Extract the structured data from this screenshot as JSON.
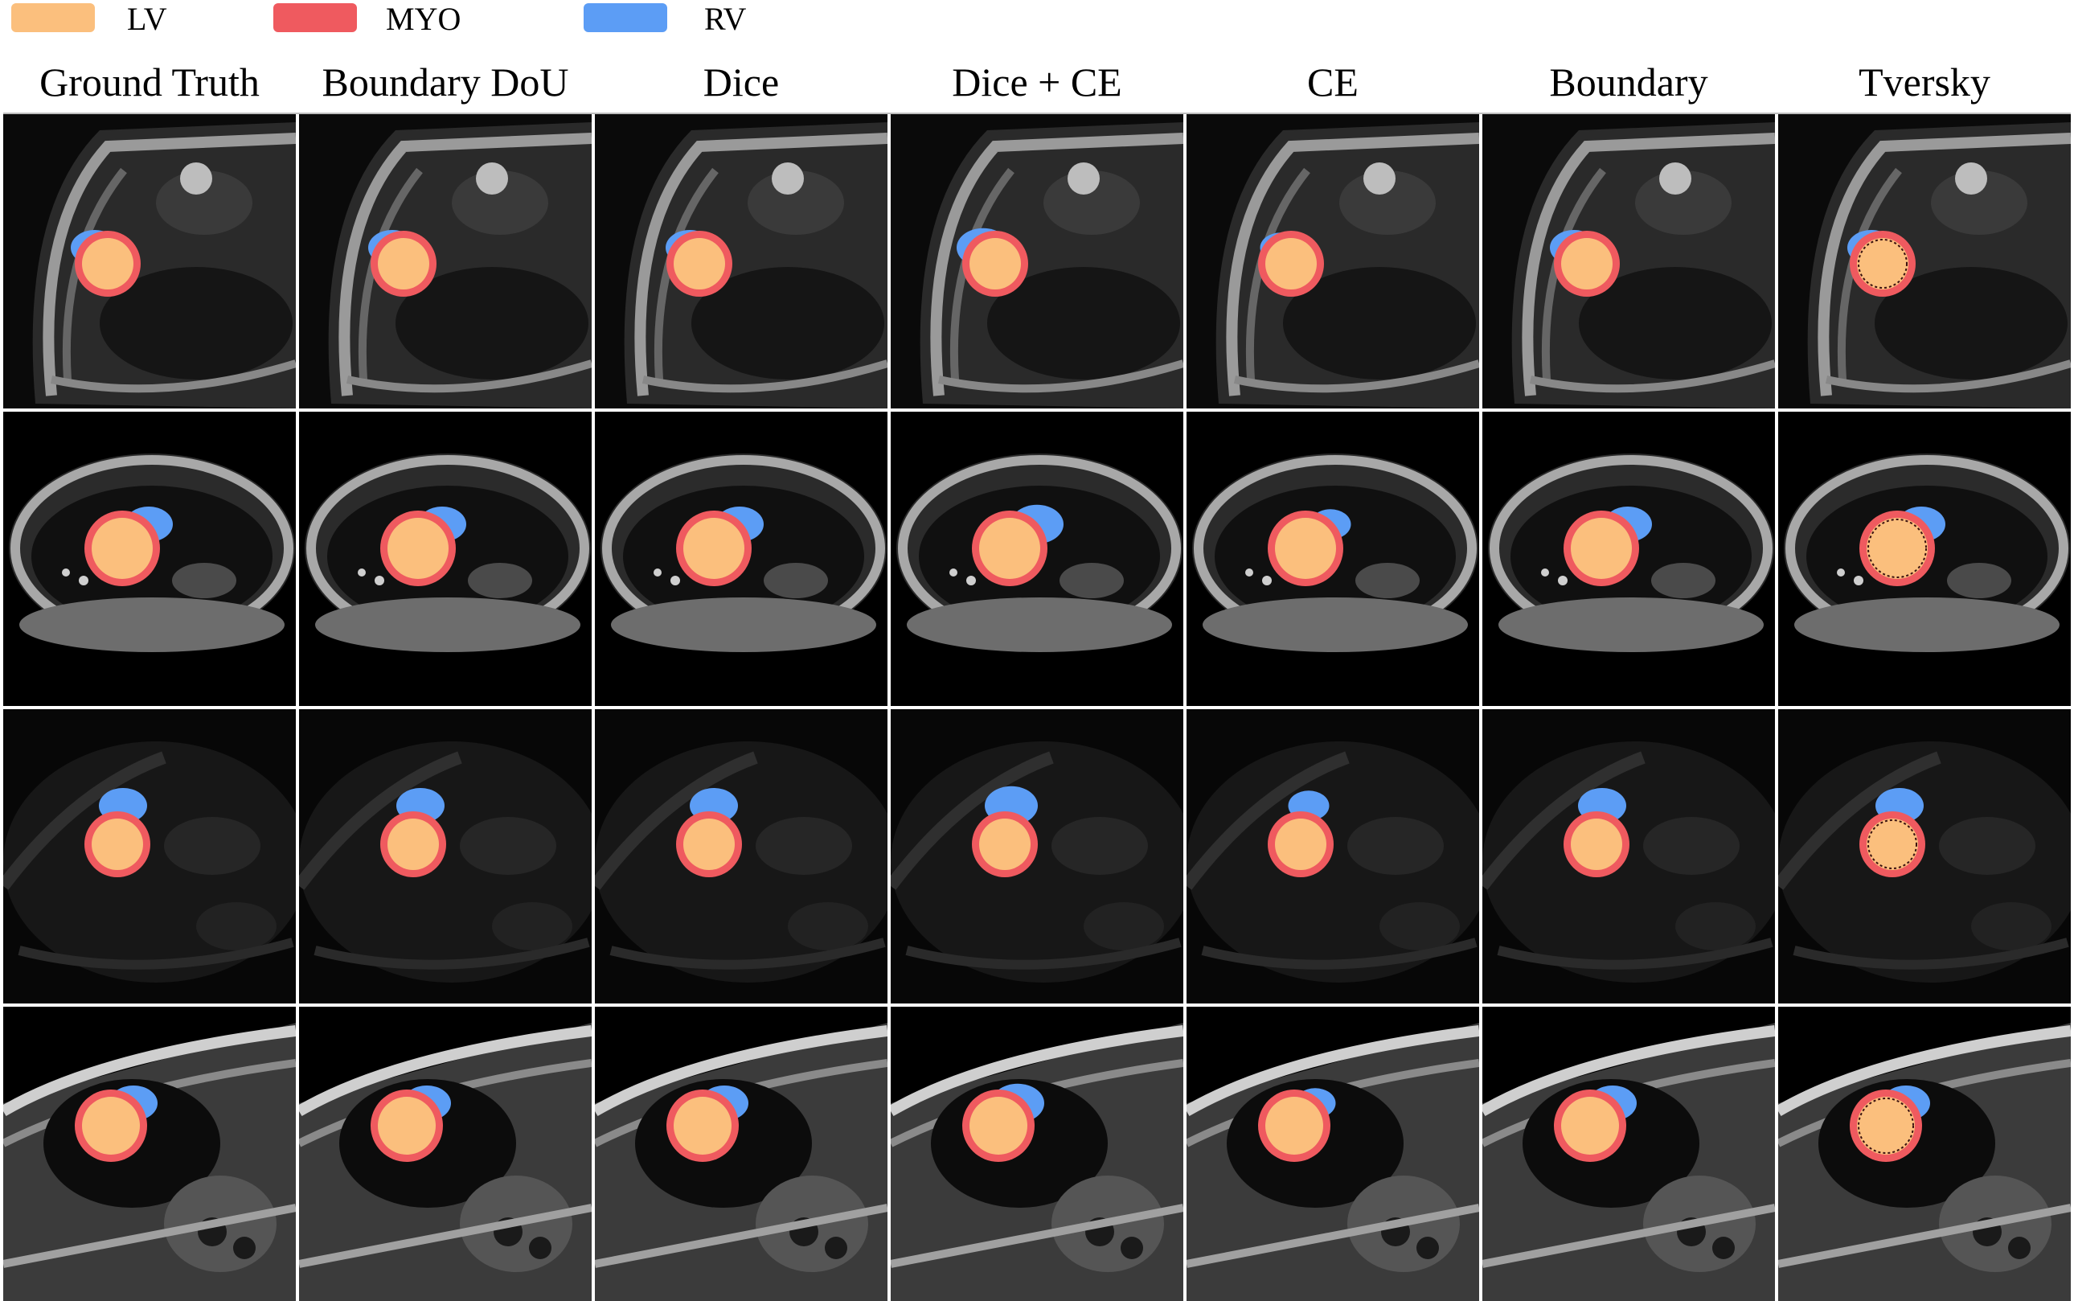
{
  "legend": [
    {
      "label": "LV",
      "color": "#fbbf7d"
    },
    {
      "label": "MYO",
      "color": "#ef5a5f"
    },
    {
      "label": "RV",
      "color": "#5c9df5"
    }
  ],
  "columns": [
    "Ground Truth",
    "Boundary DoU",
    "Dice",
    "Dice + CE",
    "CE",
    "Boundary",
    "Tversky"
  ],
  "rows": [
    {
      "scan_style": "bright-torso"
    },
    {
      "scan_style": "wide-ellipse"
    },
    {
      "scan_style": "dark-low-contrast"
    },
    {
      "scan_style": "tilted-bright"
    }
  ],
  "colors": {
    "lv": "#fbbf7d",
    "myo": "#ef5a5f",
    "rv": "#5c9df5",
    "background": "#000000",
    "divider": "#ffffff"
  }
}
